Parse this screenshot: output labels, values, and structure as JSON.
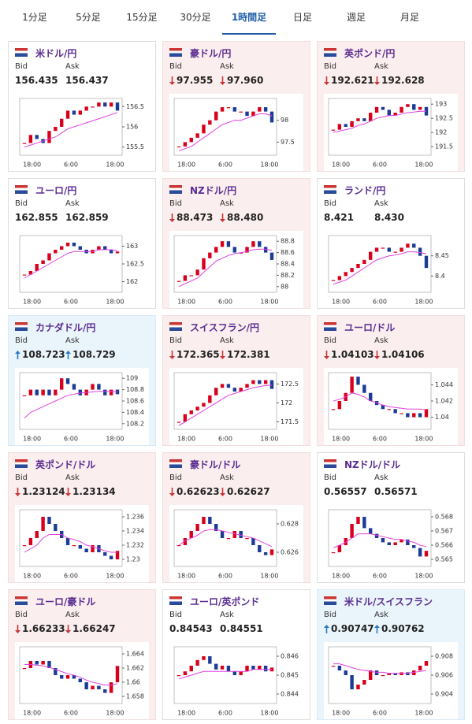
{
  "tabs": [
    "1分足",
    "5分足",
    "15分足",
    "30分足",
    "1時間足",
    "日足",
    "週足",
    "月足"
  ],
  "active_tab": 4,
  "chart_style": {
    "type": "candle",
    "up_color": "#d9001b",
    "down_color": "#1b3c96",
    "ma_color": "#e040e0"
  },
  "cards": [
    {
      "pair": "米ドル/円",
      "bid_label": "Bid",
      "ask_label": "Ask",
      "bid": "156.435",
      "ask": "156.437",
      "trend": null,
      "chart": {
        "x_labels": [
          "18:00",
          "6:00",
          "18:00"
        ],
        "ylim": [
          155.3,
          156.7
        ],
        "yticks": [
          155.5,
          156,
          156.5
        ],
        "series": [
          {
            "values": [
              155.6,
              155.8,
              155.7,
              155.6,
              155.9,
              156.0,
              156.2,
              156.4,
              156.3,
              156.4,
              156.5,
              156.5,
              156.6,
              156.5,
              156.6,
              156.4
            ]
          },
          {
            "values": [
              155.5,
              155.55,
              155.6,
              155.65,
              155.7,
              155.75,
              155.85,
              155.95,
              156.0,
              156.05,
              156.1,
              156.15,
              156.2,
              156.25,
              156.3,
              156.35
            ]
          }
        ]
      }
    },
    {
      "pair": "豪ドル/円",
      "bid_label": "Bid",
      "ask_label": "Ask",
      "bid": "97.955",
      "ask": "97.960",
      "trend": "down",
      "chart": {
        "x_labels": [
          "18:00",
          "6:00",
          "18:00"
        ],
        "ylim": [
          97.2,
          98.5
        ],
        "yticks": [
          97.5,
          98
        ],
        "series": [
          {
            "values": [
              97.4,
              97.5,
              97.6,
              97.7,
              97.9,
              98.0,
              98.2,
              98.3,
              98.3,
              98.2,
              98.2,
              98.1,
              98.2,
              98.3,
              98.2,
              97.95
            ]
          },
          {
            "values": [
              97.3,
              97.35,
              97.4,
              97.5,
              97.6,
              97.7,
              97.8,
              97.9,
              97.95,
              98.0,
              98.0,
              98.05,
              98.1,
              98.15,
              98.15,
              98.1
            ]
          }
        ]
      }
    },
    {
      "pair": "英ポンド/円",
      "bid_label": "Bid",
      "ask_label": "Ask",
      "bid": "192.621",
      "ask": "192.628",
      "trend": "down",
      "chart": {
        "x_labels": [
          "18:00",
          "6:00",
          "18:00"
        ],
        "ylim": [
          191.2,
          193.2
        ],
        "yticks": [
          191.5,
          192,
          192.5,
          193
        ],
        "series": [
          {
            "values": [
              192.1,
              192.3,
              192.2,
              192.4,
              192.5,
              192.4,
              192.7,
              192.9,
              192.8,
              192.6,
              192.7,
              192.9,
              193.0,
              192.8,
              192.9,
              192.6
            ]
          },
          {
            "values": [
              192.0,
              192.05,
              192.1,
              192.15,
              192.25,
              192.3,
              192.4,
              192.5,
              192.55,
              192.6,
              192.6,
              192.65,
              192.7,
              192.72,
              192.75,
              192.75
            ]
          }
        ]
      }
    },
    {
      "pair": "ユーロ/円",
      "bid_label": "Bid",
      "ask_label": "Ask",
      "bid": "162.855",
      "ask": "162.859",
      "trend": null,
      "chart": {
        "x_labels": [
          "18:00",
          "6:00",
          "18:00"
        ],
        "ylim": [
          161.7,
          163.3
        ],
        "yticks": [
          162,
          162.5,
          163
        ],
        "series": [
          {
            "values": [
              162.2,
              162.3,
              162.5,
              162.6,
              162.8,
              162.9,
              163.0,
              163.1,
              163.0,
              162.9,
              162.8,
              162.9,
              163.0,
              162.9,
              162.8,
              162.85
            ]
          },
          {
            "values": [
              162.1,
              162.2,
              162.3,
              162.4,
              162.5,
              162.6,
              162.7,
              162.8,
              162.85,
              162.85,
              162.85,
              162.85,
              162.9,
              162.9,
              162.9,
              162.88
            ]
          }
        ]
      }
    },
    {
      "pair": "NZドル/円",
      "bid_label": "Bid",
      "ask_label": "Ask",
      "bid": "88.473",
      "ask": "88.480",
      "trend": "down",
      "chart": {
        "x_labels": [
          "18:00",
          "6:00",
          "18:00"
        ],
        "ylim": [
          87.9,
          88.9
        ],
        "yticks": [
          88,
          88.2,
          88.4,
          88.6,
          88.8
        ],
        "series": [
          {
            "values": [
              88.1,
              88.2,
              88.2,
              88.3,
              88.5,
              88.6,
              88.7,
              88.8,
              88.7,
              88.6,
              88.6,
              88.7,
              88.8,
              88.7,
              88.6,
              88.47
            ]
          },
          {
            "values": [
              88.0,
              88.05,
              88.1,
              88.15,
              88.25,
              88.35,
              88.45,
              88.5,
              88.55,
              88.58,
              88.6,
              88.62,
              88.65,
              88.66,
              88.66,
              88.64
            ]
          }
        ]
      }
    },
    {
      "pair": "ランド/円",
      "bid_label": "Bid",
      "ask_label": "Ask",
      "bid": "8.421",
      "ask": "8.430",
      "trend": null,
      "chart": {
        "x_labels": [
          "18:00",
          "6:00",
          "18:00"
        ],
        "ylim": [
          8.36,
          8.5
        ],
        "yticks": [
          8.4,
          8.45
        ],
        "series": [
          {
            "values": [
              8.39,
              8.4,
              8.41,
              8.42,
              8.43,
              8.44,
              8.46,
              8.47,
              8.47,
              8.46,
              8.46,
              8.47,
              8.48,
              8.47,
              8.45,
              8.42
            ]
          },
          {
            "values": [
              8.38,
              8.385,
              8.39,
              8.4,
              8.41,
              8.42,
              8.43,
              8.44,
              8.445,
              8.45,
              8.452,
              8.455,
              8.46,
              8.46,
              8.458,
              8.455
            ]
          }
        ]
      }
    },
    {
      "pair": "カナダドル/円",
      "bid_label": "Bid",
      "ask_label": "Ask",
      "bid": "108.723",
      "ask": "108.729",
      "trend": "up",
      "chart": {
        "x_labels": [
          "18:00",
          "6:00",
          "18:00"
        ],
        "ylim": [
          108.1,
          109.1
        ],
        "yticks": [
          108.2,
          108.4,
          108.6,
          108.8,
          109
        ],
        "series": [
          {
            "values": [
              108.7,
              108.8,
              108.7,
              108.8,
              108.7,
              108.8,
              109.0,
              108.9,
              108.8,
              108.7,
              108.8,
              108.9,
              108.8,
              108.7,
              108.8,
              108.72
            ]
          },
          {
            "values": [
              108.3,
              108.4,
              108.45,
              108.5,
              108.55,
              108.6,
              108.65,
              108.7,
              108.72,
              108.74,
              108.75,
              108.76,
              108.77,
              108.77,
              108.77,
              108.76
            ]
          }
        ]
      }
    },
    {
      "pair": "スイスフラン/円",
      "bid_label": "Bid",
      "ask_label": "Ask",
      "bid": "172.365",
      "ask": "172.381",
      "trend": "down",
      "chart": {
        "x_labels": [
          "18:00",
          "6:00",
          "18:00"
        ],
        "ylim": [
          171.3,
          172.8
        ],
        "yticks": [
          171.5,
          172,
          172.5
        ],
        "series": [
          {
            "values": [
              171.5,
              171.7,
              171.8,
              171.9,
              172.0,
              172.2,
              172.4,
              172.5,
              172.4,
              172.3,
              172.4,
              172.5,
              172.6,
              172.5,
              172.6,
              172.37
            ]
          },
          {
            "values": [
              171.4,
              171.5,
              171.6,
              171.7,
              171.8,
              171.9,
              172.0,
              172.1,
              172.2,
              172.25,
              172.3,
              172.35,
              172.4,
              172.43,
              172.46,
              172.47
            ]
          }
        ]
      }
    },
    {
      "pair": "ユーロ/ドル",
      "bid_label": "Bid",
      "ask_label": "Ask",
      "bid": "1.04103",
      "ask": "1.04106",
      "trend": "down",
      "chart": {
        "x_labels": [
          "18:00",
          "6:00",
          "18:00"
        ],
        "ylim": [
          1.0385,
          1.0455
        ],
        "yticks": [
          1.04,
          1.042,
          1.044
        ],
        "series": [
          {
            "values": [
              1.041,
              1.042,
              1.043,
              1.045,
              1.044,
              1.043,
              1.042,
              1.0415,
              1.041,
              1.041,
              1.0405,
              1.0405,
              1.04,
              1.0405,
              1.04,
              1.041
            ]
          },
          {
            "values": [
              1.042,
              1.0422,
              1.0425,
              1.043,
              1.0428,
              1.0425,
              1.042,
              1.0418,
              1.0415,
              1.0413,
              1.0412,
              1.0411,
              1.041,
              1.041,
              1.041,
              1.0409
            ]
          }
        ]
      }
    },
    {
      "pair": "英ポンド/ドル",
      "bid_label": "Bid",
      "ask_label": "Ask",
      "bid": "1.23124",
      "ask": "1.23134",
      "trend": "down",
      "chart": {
        "x_labels": [
          "18:00",
          "6:00",
          "18:00"
        ],
        "ylim": [
          1.229,
          1.237
        ],
        "yticks": [
          1.23,
          1.232,
          1.234,
          1.236
        ],
        "series": [
          {
            "values": [
              1.232,
              1.233,
              1.234,
              1.236,
              1.235,
              1.234,
              1.233,
              1.232,
              1.232,
              1.2315,
              1.231,
              1.232,
              1.231,
              1.2305,
              1.23,
              1.2312
            ]
          },
          {
            "values": [
              1.231,
              1.2315,
              1.232,
              1.233,
              1.2335,
              1.2335,
              1.2335,
              1.233,
              1.2328,
              1.2325,
              1.232,
              1.2318,
              1.2315,
              1.2312,
              1.231,
              1.231
            ]
          }
        ]
      }
    },
    {
      "pair": "豪ドル/ドル",
      "bid_label": "Bid",
      "ask_label": "Ask",
      "bid": "0.62623",
      "ask": "0.62627",
      "trend": "down",
      "chart": {
        "x_labels": [
          "18:00",
          "6:00",
          "18:00"
        ],
        "ylim": [
          0.625,
          0.629
        ],
        "yticks": [
          0.626,
          0.628
        ],
        "series": [
          {
            "values": [
              0.6265,
              0.627,
              0.6275,
              0.628,
              0.6285,
              0.628,
              0.6275,
              0.627,
              0.627,
              0.6275,
              0.627,
              0.627,
              0.6265,
              0.626,
              0.6258,
              0.6262
            ]
          },
          {
            "values": [
              0.6265,
              0.6268,
              0.627,
              0.6272,
              0.6275,
              0.6276,
              0.6276,
              0.6275,
              0.6274,
              0.6273,
              0.6272,
              0.6271,
              0.627,
              0.6268,
              0.6266,
              0.6264
            ]
          }
        ]
      }
    },
    {
      "pair": "NZドル/ドル",
      "bid_label": "Bid",
      "ask_label": "Ask",
      "bid": "0.56557",
      "ask": "0.56571",
      "trend": null,
      "chart": {
        "x_labels": [
          "18:00",
          "6:00",
          "18:00"
        ],
        "ylim": [
          0.5645,
          0.5685
        ],
        "yticks": [
          0.565,
          0.566,
          0.567,
          0.568
        ],
        "series": [
          {
            "values": [
              0.5655,
              0.566,
              0.5665,
              0.5675,
              0.568,
              0.5672,
              0.5668,
              0.5665,
              0.5662,
              0.566,
              0.5662,
              0.5664,
              0.566,
              0.5658,
              0.5652,
              0.5656
            ]
          },
          {
            "values": [
              0.5658,
              0.566,
              0.5662,
              0.5665,
              0.5668,
              0.5668,
              0.5668,
              0.5667,
              0.5666,
              0.5665,
              0.5664,
              0.5664,
              0.5663,
              0.5662,
              0.566,
              0.5659
            ]
          }
        ]
      }
    },
    {
      "pair": "ユーロ/豪ドル",
      "bid_label": "Bid",
      "ask_label": "Ask",
      "bid": "1.66233",
      "ask": "1.66247",
      "trend": "down",
      "chart": {
        "x_labels": [
          "18:00",
          "6:00",
          "18:00"
        ],
        "ylim": [
          1.657,
          1.665
        ],
        "yticks": [
          1.658,
          1.66,
          1.662,
          1.664
        ],
        "series": [
          {
            "values": [
              1.662,
              1.663,
              1.6625,
              1.663,
              1.662,
              1.661,
              1.6605,
              1.661,
              1.6605,
              1.66,
              1.659,
              1.6595,
              1.659,
              1.6585,
              1.66,
              1.6623
            ]
          },
          {
            "values": [
              1.6625,
              1.6625,
              1.6624,
              1.6623,
              1.6621,
              1.6618,
              1.6615,
              1.6612,
              1.661,
              1.6607,
              1.6603,
              1.66,
              1.6598,
              1.6596,
              1.6596,
              1.6598
            ]
          }
        ]
      }
    },
    {
      "pair": "ユーロ/英ポンド",
      "bid_label": "Bid",
      "ask_label": "Ask",
      "bid": "0.84543",
      "ask": "0.84551",
      "trend": null,
      "chart": {
        "x_labels": [
          "18:00",
          "6:00",
          "18:00"
        ],
        "ylim": [
          0.8435,
          0.8465
        ],
        "yticks": [
          0.844,
          0.845,
          0.846
        ],
        "series": [
          {
            "values": [
              0.845,
              0.8452,
              0.8455,
              0.8458,
              0.846,
              0.8456,
              0.8453,
              0.8455,
              0.8452,
              0.845,
              0.8452,
              0.8455,
              0.8453,
              0.8455,
              0.8452,
              0.8454
            ]
          },
          {
            "values": [
              0.8448,
              0.8449,
              0.845,
              0.8451,
              0.8452,
              0.8452,
              0.8452,
              0.8452,
              0.8452,
              0.8452,
              0.8452,
              0.8452,
              0.8453,
              0.8453,
              0.8453,
              0.8453
            ]
          }
        ]
      }
    },
    {
      "pair": "米ドル/スイスフラン",
      "bid_label": "Bid",
      "ask_label": "Ask",
      "bid": "0.90747",
      "ask": "0.90762",
      "trend": "up",
      "chart": {
        "x_labels": [
          "18:00",
          "6:00",
          "18:00"
        ],
        "ylim": [
          0.903,
          0.909
        ],
        "yticks": [
          0.904,
          0.906,
          0.908
        ],
        "series": [
          {
            "values": [
              0.907,
              0.9065,
              0.906,
              0.9045,
              0.905,
              0.9055,
              0.9065,
              0.906,
              0.906,
              0.9062,
              0.906,
              0.9063,
              0.906,
              0.9065,
              0.907,
              0.9075
            ]
          },
          {
            "values": [
              0.9072,
              0.9072,
              0.907,
              0.9068,
              0.9066,
              0.9065,
              0.9064,
              0.9063,
              0.9063,
              0.9062,
              0.9062,
              0.9062,
              0.9062,
              0.9063,
              0.9064,
              0.9065
            ]
          }
        ]
      }
    }
  ]
}
